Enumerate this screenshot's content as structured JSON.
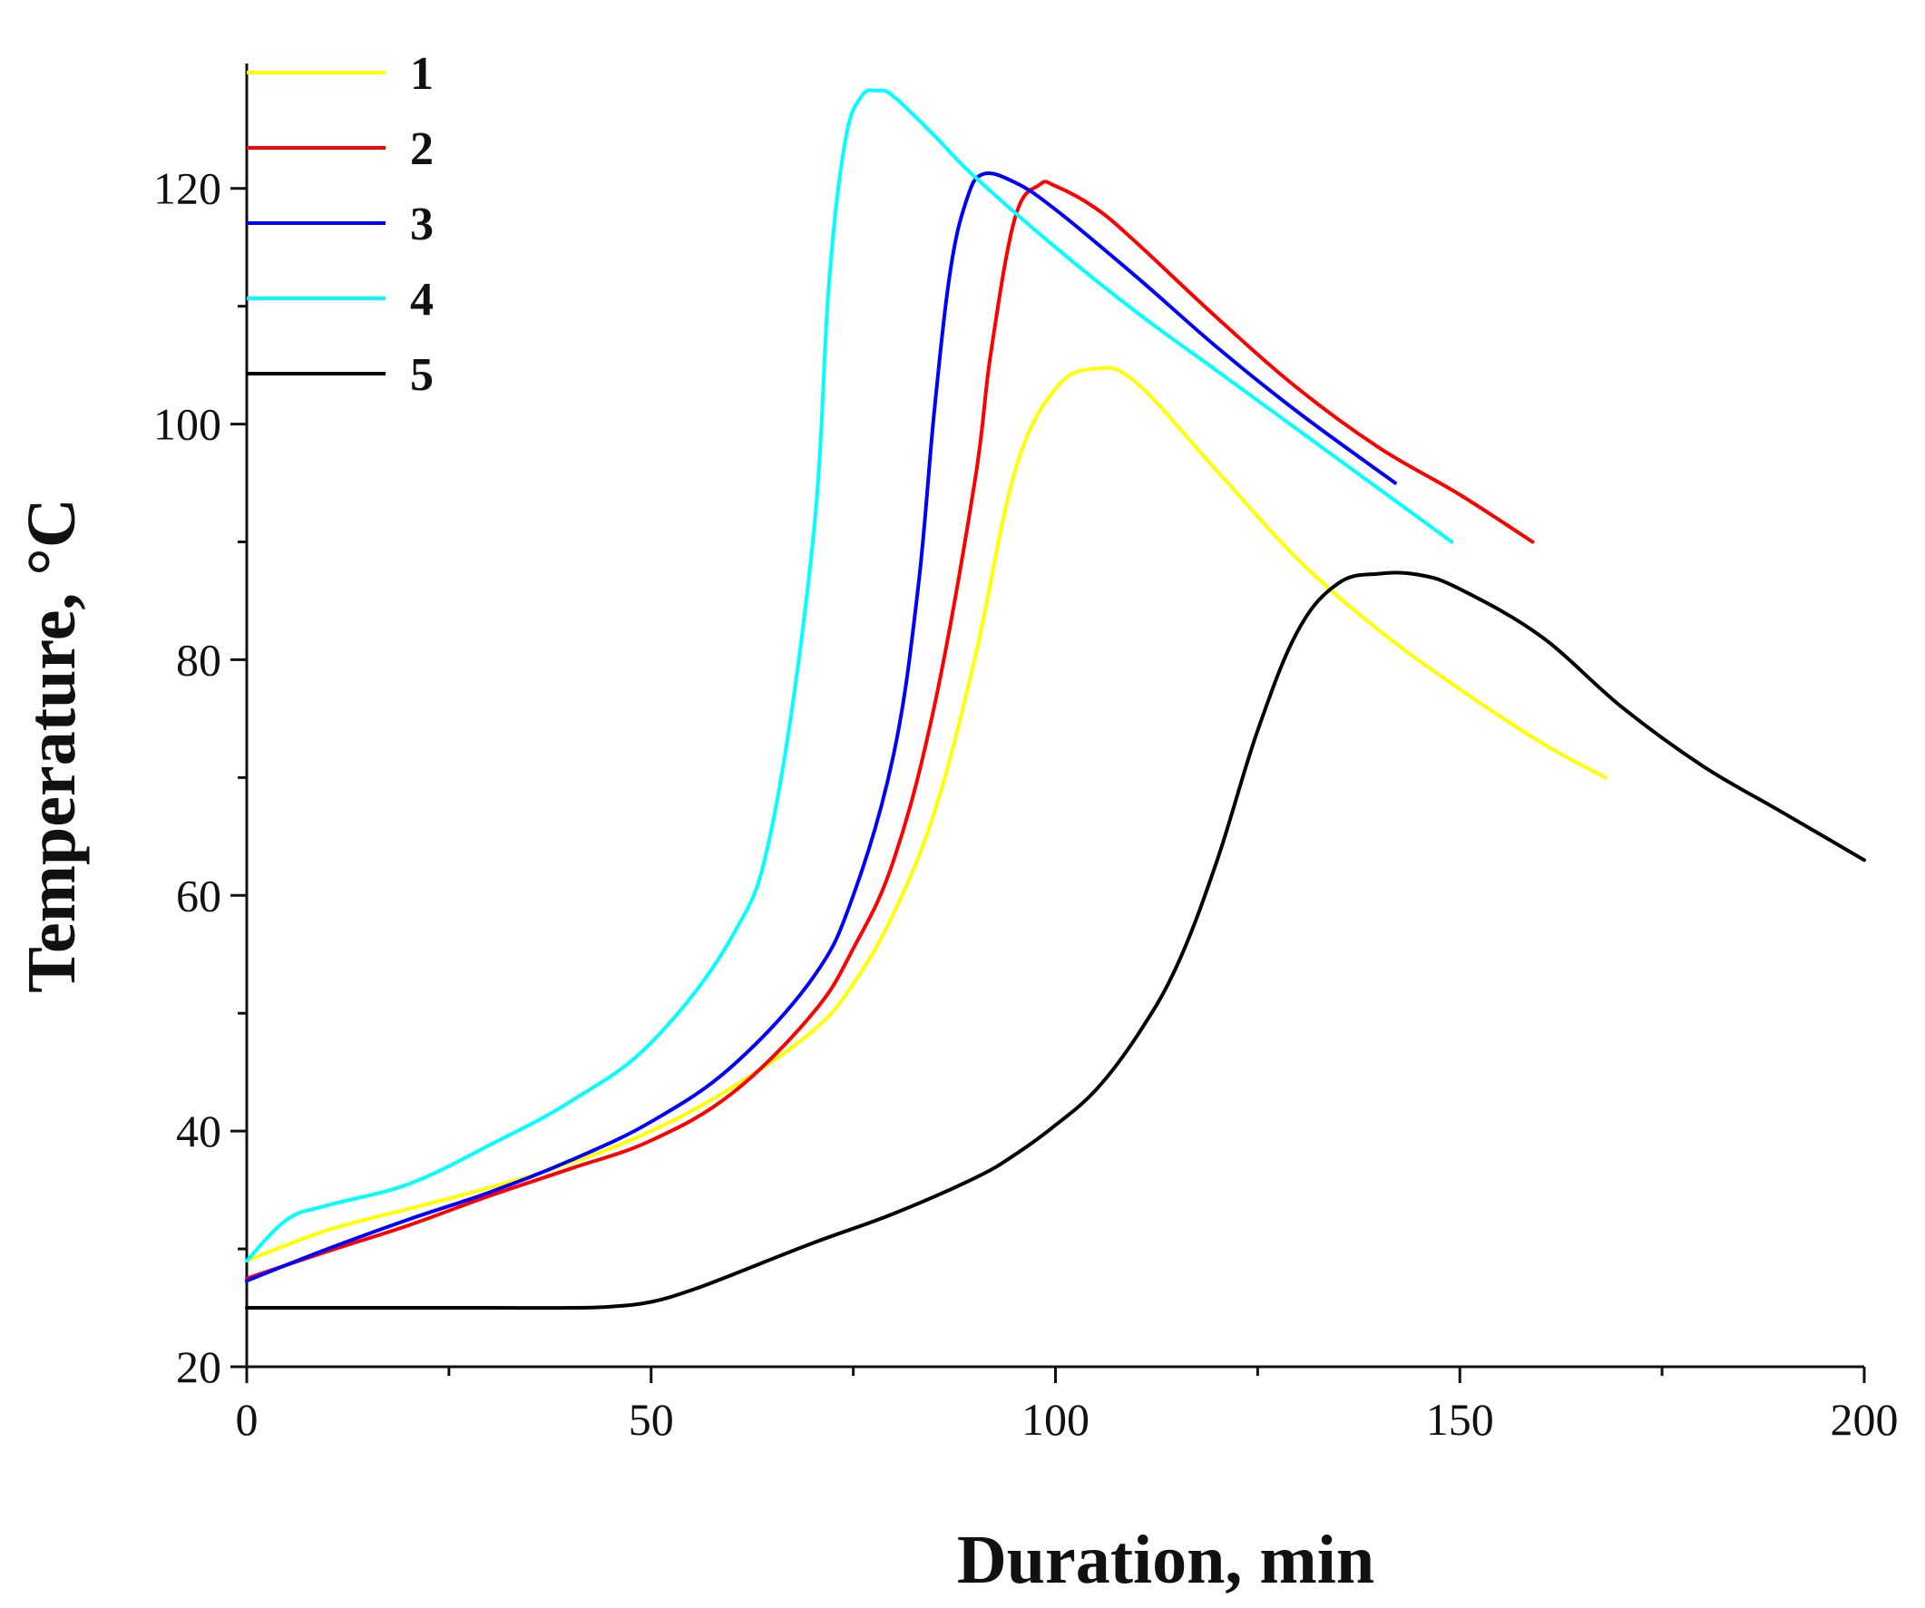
{
  "chart_data": {
    "type": "line",
    "title": "",
    "xlabel": "Duration, min",
    "ylabel": "Temperature, °C",
    "xlim": [
      0,
      200
    ],
    "ylim": [
      20,
      130
    ],
    "xticks": [
      0,
      50,
      100,
      150,
      200
    ],
    "yticks": [
      20,
      40,
      60,
      80,
      100,
      120
    ],
    "grid": false,
    "legend_position": "top-left",
    "series": [
      {
        "name": "1",
        "color": "#ffff00",
        "x": [
          0,
          10,
          20,
          30,
          40,
          50,
          60,
          70,
          75,
          80,
          85,
          90,
          95,
          100,
          105,
          110,
          120,
          130,
          140,
          150,
          160,
          168
        ],
        "y": [
          29,
          31.6,
          33.4,
          35.2,
          37.3,
          40,
          43.7,
          48.5,
          52.5,
          58.5,
          67,
          80,
          96,
          103,
          104.7,
          103.5,
          96,
          88.5,
          82.5,
          77.5,
          73,
          70
        ]
      },
      {
        "name": "2",
        "color": "#ff0000",
        "x": [
          0,
          10,
          20,
          30,
          40,
          50,
          60,
          70,
          75,
          80,
          85,
          90,
          92,
          95,
          98,
          100,
          105,
          110,
          120,
          130,
          140,
          150,
          159
        ],
        "y": [
          27.5,
          29.8,
          32,
          34.5,
          36.8,
          39.2,
          43.2,
          50,
          55.5,
          63,
          76,
          95,
          106,
          117.5,
          120.3,
          120.2,
          118.3,
          115.4,
          109,
          103,
          98,
          94,
          90
        ]
      },
      {
        "name": "3",
        "color": "#0000ff",
        "x": [
          0,
          10,
          20,
          30,
          40,
          50,
          60,
          70,
          75,
          80,
          83,
          85,
          87,
          89,
          91,
          95,
          100,
          110,
          120,
          130,
          142
        ],
        "y": [
          27.3,
          30,
          32.5,
          34.8,
          37.5,
          40.8,
          45.5,
          53,
          60,
          72,
          86,
          101,
          113,
          119,
          121.2,
          120.5,
          118.2,
          112.5,
          106.5,
          101,
          95
        ]
      },
      {
        "name": "4",
        "color": "#00ffff",
        "x": [
          0,
          5,
          10,
          20,
          30,
          40,
          50,
          60,
          65,
          70,
          72,
          74,
          76,
          78,
          80,
          85,
          90,
          100,
          110,
          120,
          130,
          140,
          149
        ],
        "y": [
          29,
          32.5,
          33.7,
          35.5,
          38.8,
          42.5,
          47.5,
          56.5,
          66,
          90,
          112,
          124,
          127.8,
          128.3,
          127.8,
          124.5,
          121,
          115,
          109.5,
          104.5,
          99.5,
          94.5,
          90
        ]
      },
      {
        "name": "5",
        "color": "#000000",
        "x": [
          0,
          10,
          20,
          30,
          40,
          45,
          50,
          55,
          60,
          70,
          80,
          90,
          95,
          100,
          105,
          110,
          115,
          120,
          125,
          130,
          135,
          140,
          145,
          150,
          160,
          170,
          180,
          190,
          200
        ],
        "y": [
          25,
          25,
          25,
          25,
          25,
          25.1,
          25.5,
          26.5,
          27.8,
          30.5,
          33,
          36,
          38,
          40.5,
          43.5,
          48,
          54,
          63,
          74,
          82.5,
          86.5,
          87.3,
          87.2,
          86,
          82,
          76,
          71,
          67,
          63
        ]
      }
    ]
  }
}
